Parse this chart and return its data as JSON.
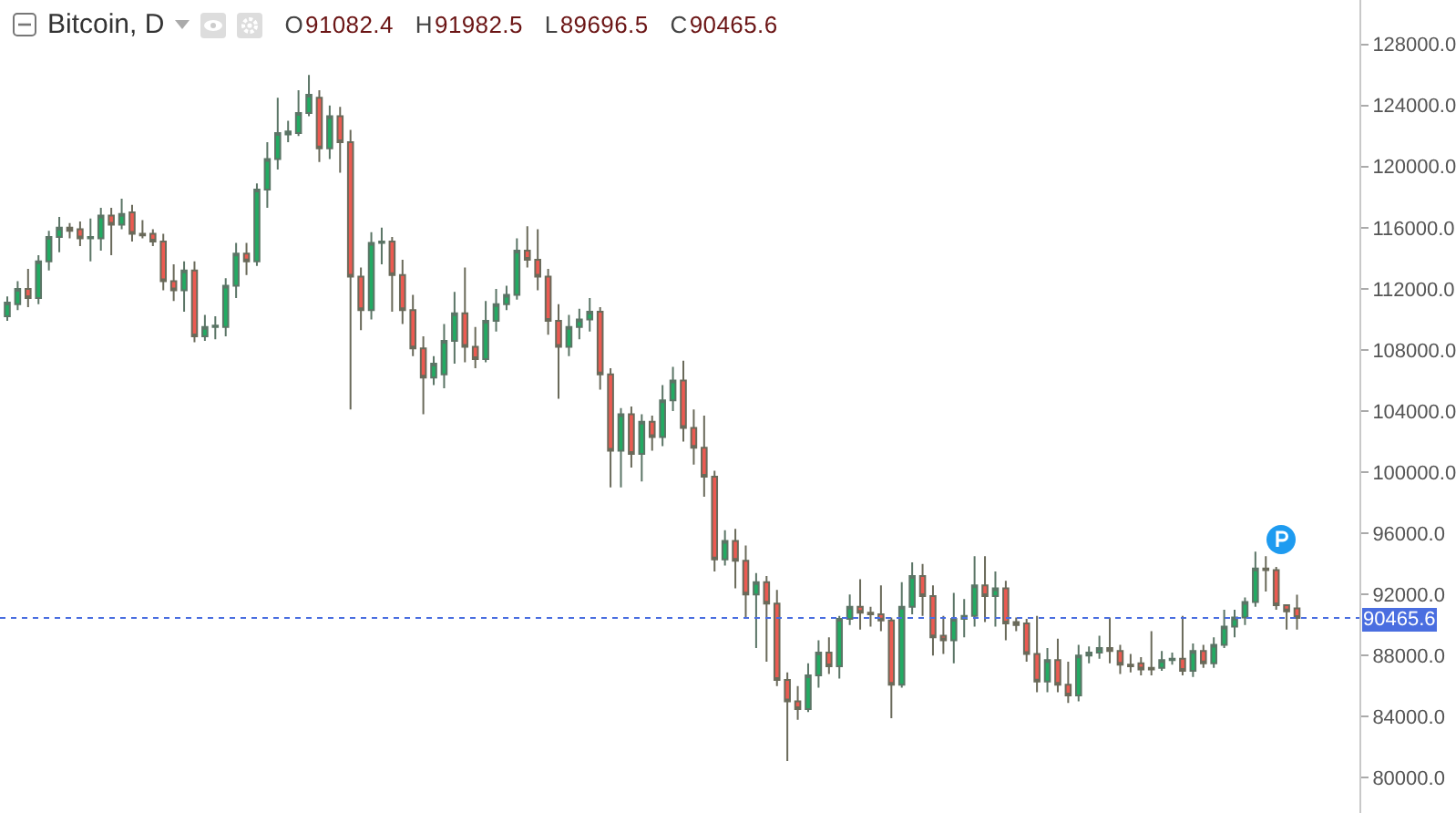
{
  "chart_data": {
    "type": "candlestick",
    "title": "Bitcoin, D",
    "annotations": [
      "O91082.4",
      "H91982.5",
      "L89696.5",
      "C90465.6"
    ],
    "categories": [
      null,
      null,
      null,
      null,
      null,
      null,
      null,
      null,
      null,
      null,
      null,
      null,
      null,
      null,
      null,
      null,
      null,
      null,
      null,
      null,
      null,
      null,
      null,
      null,
      null,
      null,
      null,
      null,
      null,
      null,
      null,
      null,
      null,
      null,
      null,
      null,
      null,
      null,
      null,
      null,
      null,
      null,
      null,
      null,
      null,
      null,
      null,
      null,
      null,
      null,
      null,
      null,
      null,
      null,
      null,
      null,
      null,
      null,
      null,
      null,
      null,
      null,
      null,
      null,
      null,
      null,
      null,
      null,
      null,
      null,
      null,
      null,
      null,
      null,
      null,
      null,
      null,
      null,
      null,
      null,
      null,
      null,
      null,
      null,
      null,
      null,
      null,
      null,
      null,
      null,
      null,
      null,
      null,
      null,
      null,
      null,
      null,
      null,
      null,
      null,
      null,
      null,
      null,
      null,
      null,
      null,
      null,
      null,
      null,
      null,
      null,
      null,
      null,
      null,
      null,
      null,
      null,
      null,
      null,
      null,
      null,
      null,
      null,
      null,
      null
    ],
    "ohlc": [
      [
        110200,
        111500,
        109900,
        111100
      ],
      [
        111000,
        112500,
        110600,
        112000
      ],
      [
        112000,
        113300,
        110800,
        111400
      ],
      [
        111400,
        114200,
        111000,
        113800
      ],
      [
        113800,
        115800,
        113200,
        115400
      ],
      [
        115400,
        116700,
        114400,
        116000
      ],
      [
        116000,
        116300,
        115300,
        115800
      ],
      [
        115900,
        116400,
        114800,
        115300
      ],
      [
        115300,
        116600,
        113800,
        115400
      ],
      [
        115300,
        117300,
        114500,
        116800
      ],
      [
        116800,
        117300,
        114200,
        116200
      ],
      [
        116200,
        117900,
        115900,
        116900
      ],
      [
        117000,
        117500,
        115100,
        115600
      ],
      [
        115600,
        116500,
        115300,
        115500
      ],
      [
        115600,
        115900,
        114800,
        115100
      ],
      [
        115100,
        115600,
        111900,
        112500
      ],
      [
        112500,
        113600,
        111200,
        111900
      ],
      [
        111900,
        113800,
        110500,
        113200
      ],
      [
        113200,
        113800,
        108500,
        108900
      ],
      [
        108900,
        110300,
        108600,
        109500
      ],
      [
        109500,
        110200,
        108700,
        109600
      ],
      [
        109500,
        112700,
        108900,
        112200
      ],
      [
        112200,
        115000,
        111400,
        114300
      ],
      [
        114300,
        115000,
        112900,
        113800
      ],
      [
        113800,
        118900,
        113500,
        118500
      ],
      [
        118500,
        121600,
        117300,
        120500
      ],
      [
        120500,
        124500,
        119800,
        122200
      ],
      [
        122100,
        123000,
        121600,
        122300
      ],
      [
        122200,
        125000,
        122000,
        123500
      ],
      [
        123500,
        126000,
        123300,
        124700
      ],
      [
        124500,
        125000,
        120300,
        121200
      ],
      [
        121200,
        124000,
        120500,
        123300
      ],
      [
        123300,
        123900,
        119600,
        121600
      ],
      [
        121600,
        122400,
        104100,
        112800
      ],
      [
        112800,
        113400,
        109300,
        110600
      ],
      [
        110600,
        115700,
        110000,
        115000
      ],
      [
        115000,
        116000,
        113600,
        115100
      ],
      [
        115100,
        115400,
        110500,
        112900
      ],
      [
        112900,
        113900,
        109700,
        110600
      ],
      [
        110600,
        111600,
        107600,
        108100
      ],
      [
        108100,
        108900,
        103800,
        106200
      ],
      [
        106200,
        107600,
        105700,
        107100
      ],
      [
        106400,
        109700,
        105500,
        108600
      ],
      [
        108600,
        111800,
        107100,
        110400
      ],
      [
        110400,
        113400,
        107200,
        108200
      ],
      [
        108200,
        109500,
        106800,
        107400
      ],
      [
        107400,
        111200,
        107200,
        109900
      ],
      [
        109900,
        112000,
        109200,
        111000
      ],
      [
        111000,
        112200,
        110600,
        111600
      ],
      [
        111600,
        115300,
        111300,
        114500
      ],
      [
        114500,
        116100,
        113400,
        113900
      ],
      [
        113900,
        115900,
        111900,
        112800
      ],
      [
        112800,
        113300,
        109000,
        109900
      ],
      [
        109900,
        111000,
        104800,
        108200
      ],
      [
        108200,
        110300,
        107600,
        109500
      ],
      [
        109500,
        110700,
        108700,
        110000
      ],
      [
        110000,
        111400,
        109200,
        110500
      ],
      [
        110500,
        110800,
        105400,
        106400
      ],
      [
        106400,
        106800,
        99000,
        101400
      ],
      [
        101400,
        104200,
        99000,
        103800
      ],
      [
        103800,
        104300,
        100300,
        101200
      ],
      [
        101200,
        103800,
        99400,
        103300
      ],
      [
        103300,
        103700,
        101400,
        102300
      ],
      [
        102300,
        105700,
        101700,
        104700
      ],
      [
        104700,
        106900,
        104000,
        106000
      ],
      [
        106000,
        107300,
        102000,
        102900
      ],
      [
        102900,
        104100,
        100500,
        101600
      ],
      [
        101600,
        103700,
        98400,
        99700
      ],
      [
        99700,
        100100,
        93500,
        94300
      ],
      [
        94300,
        96200,
        93900,
        95500
      ],
      [
        95500,
        96300,
        92400,
        94200
      ],
      [
        94200,
        95200,
        90500,
        92000
      ],
      [
        92000,
        93400,
        88500,
        92800
      ],
      [
        92800,
        93200,
        87600,
        91400
      ],
      [
        91400,
        92300,
        86000,
        86400
      ],
      [
        86400,
        86900,
        81100,
        85000
      ],
      [
        85000,
        86000,
        83800,
        84500
      ],
      [
        84500,
        87500,
        84300,
        86700
      ],
      [
        86700,
        89000,
        85900,
        88200
      ],
      [
        88200,
        89200,
        86800,
        87300
      ],
      [
        87300,
        90600,
        86500,
        90400
      ],
      [
        90400,
        92000,
        90000,
        91200
      ],
      [
        91200,
        93000,
        89700,
        90800
      ],
      [
        90800,
        91200,
        89900,
        90700
      ],
      [
        90700,
        92600,
        89600,
        90300
      ],
      [
        90300,
        90500,
        83900,
        86100
      ],
      [
        86100,
        92800,
        85900,
        91200
      ],
      [
        91200,
        94100,
        90700,
        93200
      ],
      [
        93200,
        94000,
        90600,
        91900
      ],
      [
        91900,
        92600,
        88000,
        89200
      ],
      [
        89300,
        90600,
        88100,
        89000
      ],
      [
        89000,
        92100,
        87500,
        90400
      ],
      [
        90400,
        91700,
        89200,
        90600
      ],
      [
        90600,
        94500,
        89900,
        92600
      ],
      [
        92600,
        94500,
        90200,
        91900
      ],
      [
        91900,
        93500,
        89900,
        92400
      ],
      [
        92400,
        92900,
        89000,
        90100
      ],
      [
        90200,
        90500,
        89600,
        90000
      ],
      [
        90100,
        90400,
        87600,
        88100
      ],
      [
        88100,
        90600,
        85600,
        86300
      ],
      [
        86300,
        88500,
        85600,
        87700
      ],
      [
        87700,
        89100,
        85600,
        86100
      ],
      [
        86100,
        87600,
        84900,
        85400
      ],
      [
        85400,
        88700,
        85000,
        88000
      ],
      [
        88000,
        88600,
        87500,
        88200
      ],
      [
        88200,
        89300,
        87800,
        88500
      ],
      [
        88500,
        90500,
        87500,
        88300
      ],
      [
        88300,
        88700,
        86800,
        87400
      ],
      [
        87400,
        88100,
        86900,
        87300
      ],
      [
        87500,
        87900,
        86700,
        87100
      ],
      [
        87200,
        89600,
        86700,
        87100
      ],
      [
        87200,
        88300,
        87000,
        87700
      ],
      [
        87700,
        88200,
        87400,
        87800
      ],
      [
        87800,
        90600,
        86700,
        87000
      ],
      [
        87000,
        88800,
        86600,
        88300
      ],
      [
        88300,
        88700,
        87200,
        87500
      ],
      [
        87500,
        89200,
        87200,
        88700
      ],
      [
        88700,
        91000,
        88500,
        89900
      ],
      [
        89900,
        91000,
        89200,
        90500
      ],
      [
        90500,
        91800,
        90000,
        91500
      ],
      [
        91500,
        94800,
        91200,
        93700
      ],
      [
        93700,
        94500,
        92200,
        93600
      ],
      [
        93600,
        93800,
        91000,
        91300
      ],
      [
        91300,
        91300,
        89700,
        90900
      ],
      [
        91082.4,
        91982.5,
        89696.5,
        90465.6
      ]
    ],
    "ylim": [
      77700,
      130900
    ],
    "yticks": [
      {
        "value": 80000,
        "label": "80000.0"
      },
      {
        "value": 84000,
        "label": "84000.0"
      },
      {
        "value": 88000,
        "label": "88000.0"
      },
      {
        "value": 92000,
        "label": "92000.0"
      },
      {
        "value": 96000,
        "label": "96000.0"
      },
      {
        "value": 100000,
        "label": "100000.0"
      },
      {
        "value": 104000,
        "label": "104000.0"
      },
      {
        "value": 108000,
        "label": "108000.0"
      },
      {
        "value": 112000,
        "label": "112000.0"
      },
      {
        "value": 116000,
        "label": "116000.0"
      },
      {
        "value": 120000,
        "label": "120000.0"
      },
      {
        "value": 124000,
        "label": "124000.0"
      },
      {
        "value": 128000,
        "label": "128000.0"
      }
    ],
    "ref_lines": [
      {
        "axis": "y",
        "value": 90465.6,
        "label": "90465.6",
        "color": "#4a6ee0",
        "line_style": "dotted"
      }
    ],
    "tick_labels": "y"
  }
}
